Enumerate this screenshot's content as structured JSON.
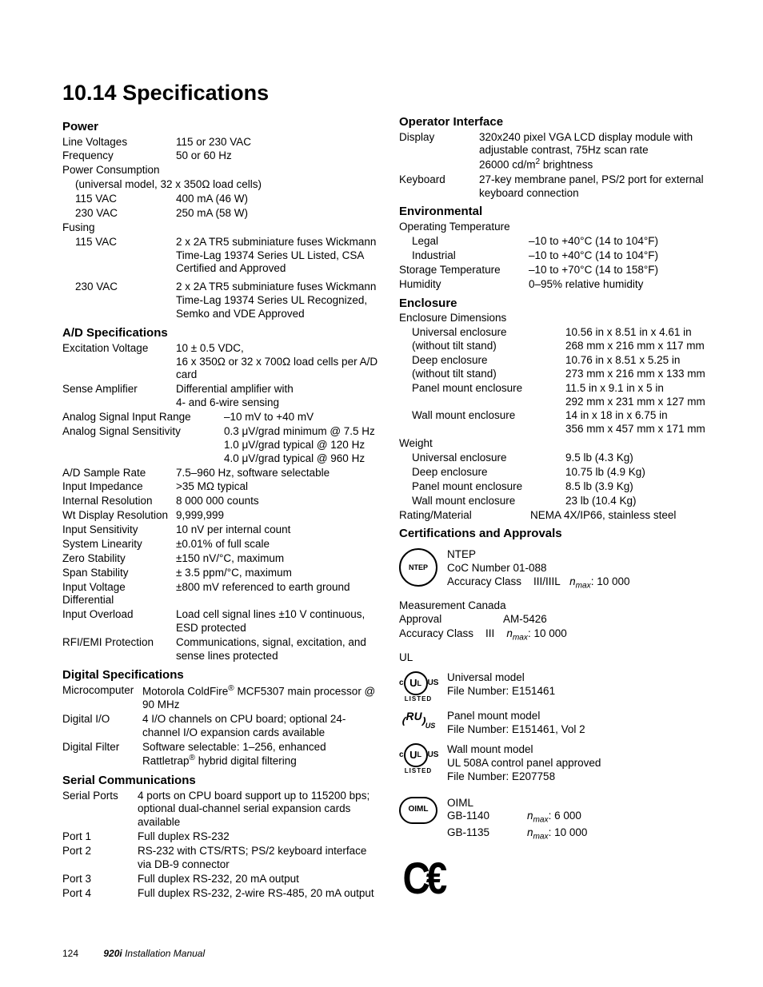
{
  "heading": "10.14   Specifications",
  "footer": {
    "page": "124",
    "title": "920i",
    "subtitle": " Installation Manual"
  },
  "sections": {
    "power": {
      "title": "Power",
      "rows": [
        {
          "label": "Line Voltages",
          "labelW": 142,
          "value": "115 or 230 VAC"
        },
        {
          "label": "Frequency",
          "labelW": 142,
          "value": "50 or 60 Hz"
        },
        {
          "label": "Power Consumption",
          "labelW": 142,
          "value": ""
        }
      ],
      "universal_note": "(universal model, 32 x 350Ω load cells)",
      "consumption": [
        {
          "label": "115 VAC",
          "labelW": 126,
          "value": "400 mA (46 W)"
        },
        {
          "label": "230 VAC",
          "labelW": 126,
          "value": "250 mA (58 W)"
        }
      ],
      "fusing_label": "Fusing",
      "fusing": [
        {
          "label": "115 VAC",
          "labelW": 126,
          "value": "2 x 2A TR5 subminiature fuses Wickmann Time-Lag 19374 Series UL Listed, CSA Certified and Approved"
        },
        {
          "label": "230 VAC",
          "labelW": 126,
          "value": "2 x 2A TR5 subminiature fuses Wickmann Time-Lag 19374 Series UL Recognized, Semko and VDE Approved"
        }
      ]
    },
    "ad": {
      "title": "A/D Specifications",
      "rows": [
        {
          "label": "Excitation Voltage",
          "labelW": 142,
          "value": "10 ± 0.5 VDC,\n16 x 350Ω or 32 x 700Ω load cells per A/D card"
        },
        {
          "label": "Sense Amplifier",
          "labelW": 142,
          "value": "Differential amplifier with\n4- and 6-wire sensing"
        },
        {
          "label": "Analog Signal Input Range",
          "labelW": 202,
          "value": "–10 mV to +40 mV"
        },
        {
          "label": "Analog Signal Sensitivity",
          "labelW": 202,
          "value": "0.3 μV/grad minimum @ 7.5 Hz\n1.0 μV/grad typical @ 120 Hz\n4.0 μV/grad typical @ 960 Hz"
        },
        {
          "label": "A/D Sample Rate",
          "labelW": 142,
          "value": "7.5–960 Hz, software selectable"
        },
        {
          "label": "Input Impedance",
          "labelW": 142,
          "value": ">35 MΩ typical"
        },
        {
          "label": "Internal Resolution",
          "labelW": 142,
          "value": "8 000 000 counts"
        },
        {
          "label": "Wt Display Resolution",
          "labelW": 142,
          "value": "9,999,999"
        },
        {
          "label": "Input Sensitivity",
          "labelW": 142,
          "value": "10 nV per internal count"
        },
        {
          "label": "System Linearity",
          "labelW": 142,
          "value": "±0.01% of full scale"
        },
        {
          "label": "Zero Stability",
          "labelW": 142,
          "value": "±150 nV/°C, maximum"
        },
        {
          "label": "Span Stability",
          "labelW": 142,
          "value": "± 3.5 ppm/°C, maximum"
        },
        {
          "label": "Input Voltage Differential",
          "labelW": 142,
          "value": "±800 mV referenced to earth ground"
        },
        {
          "label": "Input Overload",
          "labelW": 142,
          "value": "Load cell signal lines ±10 V continuous, ESD protected"
        },
        {
          "label": "RFI/EMI Protection",
          "labelW": 142,
          "value": "Communications, signal, excitation, and sense lines protected"
        }
      ]
    },
    "digital": {
      "title": "Digital Specifications",
      "rows": [
        {
          "label": "Microcomputer",
          "labelW": 100,
          "value_html": "Motorola ColdFire<sup>®</sup> MCF5307 main processor @ 90 MHz"
        },
        {
          "label": "Digital I/O",
          "labelW": 100,
          "value": "4 I/O channels on CPU board; optional 24-channel I/O expansion cards available"
        },
        {
          "label": "Digital Filter",
          "labelW": 100,
          "value_html": "Software selectable: 1–256, enhanced Rattletrap<sup>®</sup> hybrid digital filtering"
        }
      ]
    },
    "serial": {
      "title": "Serial Communications",
      "rows": [
        {
          "label": "Serial Ports",
          "labelW": 94,
          "value": "4 ports on CPU board support up to 115200 bps; optional dual-channel serial expansion cards available"
        },
        {
          "label": "Port 1",
          "labelW": 94,
          "value": "Full duplex RS-232"
        },
        {
          "label": "Port 2",
          "labelW": 94,
          "value": "RS-232 with CTS/RTS; PS/2 keyboard interface via DB-9 connector"
        },
        {
          "label": "Port 3",
          "labelW": 94,
          "value": "Full duplex RS-232, 20 mA output"
        },
        {
          "label": "Port 4",
          "labelW": 94,
          "value": "Full duplex RS-232, 2-wire RS-485, 20 mA output"
        }
      ]
    },
    "operator": {
      "title": "Operator Interface",
      "rows": [
        {
          "label": "Display",
          "labelW": 100,
          "value_html": "320x240 pixel VGA LCD display module with adjustable contrast, 75Hz scan rate<br>26000 cd/m<sup>2</sup> brightness"
        },
        {
          "label": "Keyboard",
          "labelW": 100,
          "value": "27-key membrane panel, PS/2 port for external keyboard connection"
        }
      ]
    },
    "env": {
      "title": "Environmental",
      "op_temp_label": "Operating Temperature",
      "rows": [
        {
          "label": "Legal",
          "labelW": 146,
          "indent": 1,
          "value": "–10 to +40°C (14 to 104°F)"
        },
        {
          "label": "Industrial",
          "labelW": 146,
          "indent": 1,
          "value": "–10 to +40°C (14 to 104°F)"
        },
        {
          "label": "Storage Temperature",
          "labelW": 162,
          "value": "–10 to +70°C (14 to 158°F)"
        },
        {
          "label": "Humidity",
          "labelW": 162,
          "value": "0–95% relative humidity"
        }
      ]
    },
    "enclosure": {
      "title": "Enclosure",
      "dim_label": "Enclosure Dimensions",
      "dims": [
        {
          "label": "Universal enclosure\n(without tilt stand)",
          "labelW": 192,
          "value": "10.56 in x 8.51 in x 4.61 in\n268 mm x 216 mm x 117 mm"
        },
        {
          "label": "Deep enclosure\n(without tilt stand)",
          "labelW": 192,
          "value": "10.76 in x 8.51 x 5.25 in\n273 mm x 216 mm x 133 mm"
        },
        {
          "label": "Panel mount enclosure",
          "labelW": 192,
          "value": "11.5 in x 9.1 in x 5 in\n292 mm x 231 mm x 127 mm"
        },
        {
          "label": "Wall mount enclosure",
          "labelW": 192,
          "value": "14 in x 18 in x 6.75 in\n356 mm x 457 mm x 171 mm"
        }
      ],
      "weight_label": "Weight",
      "weights": [
        {
          "label": "Universal enclosure",
          "labelW": 192,
          "value": "9.5 lb (4.3 Kg)"
        },
        {
          "label": "Deep enclosure",
          "labelW": 192,
          "value": "10.75 lb (4.9 Kg)"
        },
        {
          "label": "Panel mount enclosure",
          "labelW": 192,
          "value": "8.5 lb (3.9 Kg)"
        },
        {
          "label": "Wall mount enclosure",
          "labelW": 192,
          "value": "23 lb (10.4 Kg)"
        }
      ],
      "rating": {
        "label": "Rating/Material",
        "labelW": 164,
        "value": "NEMA 4X/IP66, stainless steel"
      }
    },
    "certs": {
      "title": "Certifications and Approvals",
      "ntep": {
        "name": "NTEP",
        "coc": "CoC Number 01-088",
        "acc_label": "Accuracy Class",
        "acc_class": "III/IIIL",
        "nmax": ": 10 000"
      },
      "mc": {
        "name": "Measurement Canada",
        "approval_label": "Approval",
        "approval": "AM-5426",
        "acc_label": "Accuracy Class",
        "acc_class": "III",
        "nmax": ": 10 000"
      },
      "ul": {
        "name": "UL",
        "items": [
          {
            "model": "Universal model",
            "file": "File Number: E151461"
          },
          {
            "model": "Panel mount model",
            "file": "File Number: E151461, Vol 2"
          },
          {
            "model": "Wall mount model",
            "extra": "UL 508A control panel approved",
            "file": "File Number: E207758"
          }
        ]
      },
      "oiml": {
        "name": "OIML",
        "rows": [
          {
            "gb": "GB-1140",
            "nmax": ": 6 000"
          },
          {
            "gb": "GB-1135",
            "nmax": ": 10 000"
          }
        ]
      }
    }
  }
}
